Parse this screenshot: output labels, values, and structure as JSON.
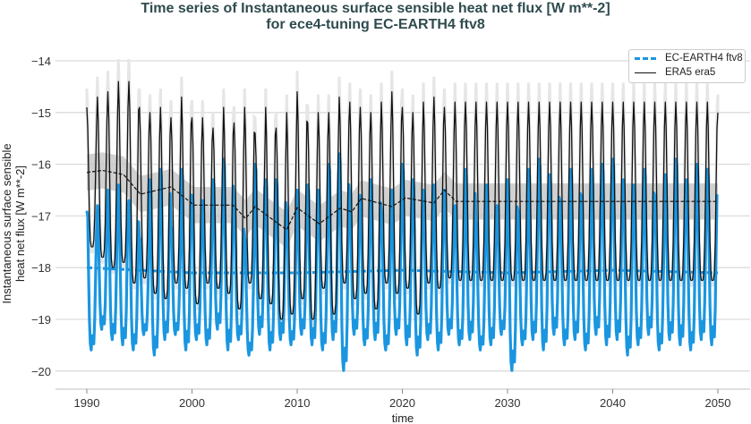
{
  "chart_data": {
    "type": "line",
    "title": "Time series of Instantaneous surface sensible heat net flux [W m**-2]",
    "subtitle": "for ece4-tuning EC-EARTH4 ftv8",
    "xlabel": "time",
    "ylabel": "Instantaneous surface sensible heat net flux [W m**-2]",
    "xlim": [
      1988,
      2053
    ],
    "ylim": [
      -20.35,
      -13.8
    ],
    "xticks": [
      "1990",
      "2000",
      "2010",
      "2020",
      "2030",
      "2040",
      "2050"
    ],
    "yticks": [
      "−14",
      "−15",
      "−16",
      "−17",
      "−18",
      "−19",
      "−20"
    ],
    "grid": "horizontal",
    "legend_position": "top-right",
    "series": [
      {
        "name": "EC-EARTH4 ftv8",
        "color": "#1a96e0",
        "style": "dashed",
        "frequency": "monthly",
        "years": [
          1990,
          2049
        ],
        "annual_peak": [
          -16.9,
          -16.8,
          -16.5,
          -16.4,
          -16.7,
          -17.4,
          -16.3,
          -16.1,
          -17.2,
          -16.1,
          -16.6,
          -16.7,
          -16.3,
          -15.9,
          -16.9,
          -17.4,
          -16.0,
          -16.3,
          -16.3,
          -17.0,
          -16.5,
          -16.4,
          -16.5,
          -16.0,
          -15.8,
          -16.6,
          -16.6,
          -16.3,
          -16.9,
          -16.5,
          -16.0,
          -16.3,
          -16.5,
          -16.4,
          -16.5,
          -16.8,
          -16.1,
          -17.1,
          -16.4,
          -16.8,
          -16.3,
          -16.9,
          -16.1,
          -15.9,
          -16.2,
          -16.7,
          -16.1,
          -16.6,
          -16.1,
          -16.0,
          -15.9,
          -16.3,
          -16.4,
          -16.1,
          -16.6,
          -16.2,
          -15.9,
          -16.3,
          -16.0,
          -16.1
        ],
        "annual_trough": [
          -19.6,
          -19.2,
          -19.4,
          -19.5,
          -19.6,
          -19.3,
          -19.7,
          -19.4,
          -19.3,
          -19.6,
          -19.4,
          -19.5,
          -19.2,
          -19.6,
          -19.4,
          -19.7,
          -19.3,
          -19.6,
          -19.4,
          -19.5,
          -19.3,
          -19.5,
          -19.6,
          -19.4,
          -20.0,
          -19.3,
          -19.5,
          -19.4,
          -19.6,
          -19.3,
          -19.5,
          -19.7,
          -19.4,
          -19.6,
          -19.3,
          -19.5,
          -19.4,
          -19.6,
          -19.5,
          -19.3,
          -20.0,
          -19.5,
          -19.4,
          -19.6,
          -19.3,
          -19.5,
          -19.4,
          -19.6,
          -19.3,
          -19.5,
          -19.4,
          -19.7,
          -19.5,
          -19.3,
          -19.6,
          -19.4,
          -19.5,
          -19.6,
          -19.4,
          -19.5
        ],
        "running_mean": {
          "x": [
            1990,
            1995,
            2000,
            2010,
            2020,
            2030,
            2040,
            2050
          ],
          "y": [
            -18.0,
            -18.05,
            -18.1,
            -18.1,
            -18.05,
            -18.1,
            -18.05,
            -18.1
          ]
        }
      },
      {
        "name": "ERA5 era5",
        "color": "#111111",
        "style": "solid",
        "frequency": "monthly",
        "years": [
          1990,
          2049
        ],
        "annual_peak": [
          -14.9,
          -14.7,
          -14.6,
          -14.4,
          -14.4,
          -14.9,
          -15.0,
          -14.9,
          -15.1,
          -14.7,
          -15.1,
          -15.1,
          -15.3,
          -14.9,
          -15.2,
          -14.9,
          -15.4,
          -14.9,
          -15.3,
          -15.0,
          -14.6,
          -15.2,
          -15.0,
          -15.0,
          -14.7,
          -14.8,
          -14.9,
          -15.0,
          -14.8,
          -14.6,
          -14.9,
          -15.0,
          -14.8,
          -14.7,
          -14.9,
          -14.8,
          -14.8,
          -14.8,
          -14.8,
          -14.8,
          -14.8,
          -14.8,
          -14.8,
          -14.8,
          -14.8,
          -14.8,
          -14.8,
          -14.8,
          -14.8,
          -14.8,
          -14.8,
          -14.8,
          -14.8,
          -14.8,
          -14.8,
          -14.8,
          -14.8,
          -14.8,
          -14.8,
          -14.8
        ],
        "annual_trough": [
          -17.6,
          -17.8,
          -18.0,
          -17.9,
          -18.3,
          -18.2,
          -18.5,
          -18.6,
          -18.3,
          -18.4,
          -18.7,
          -18.3,
          -18.4,
          -18.5,
          -18.8,
          -18.3,
          -18.6,
          -18.7,
          -19.0,
          -18.9,
          -18.6,
          -19.0,
          -18.4,
          -18.9,
          -18.3,
          -18.6,
          -18.5,
          -18.8,
          -18.3,
          -18.5,
          -18.4,
          -18.9,
          -18.3,
          -18.4,
          -18.2,
          -18.25,
          -18.25,
          -18.25,
          -18.25,
          -18.25,
          -18.25,
          -18.25,
          -18.25,
          -18.25,
          -18.25,
          -18.25,
          -18.25,
          -18.25,
          -18.25,
          -18.25,
          -18.25,
          -18.25,
          -18.25,
          -18.25,
          -18.25,
          -18.25,
          -18.25,
          -18.25,
          -18.25,
          -18.25
        ],
        "end_value": -15.0,
        "running_mean": {
          "x": [
            1990,
            1991.5,
            1993.5,
            1995.1,
            1998,
            2000.2,
            2003.9,
            2005.1,
            2006,
            2009,
            2010,
            2012.1,
            2014.1,
            2015.2,
            2016.1,
            2019,
            2020.3,
            2023,
            2024,
            2025.1,
            2050
          ],
          "y": [
            -16.16,
            -16.12,
            -16.2,
            -16.58,
            -16.44,
            -16.79,
            -16.79,
            -17.05,
            -16.82,
            -17.27,
            -16.84,
            -17.15,
            -16.85,
            -16.92,
            -16.66,
            -16.82,
            -16.65,
            -16.75,
            -16.5,
            -16.72,
            -16.72
          ]
        },
        "running_std_band": 0.35
      }
    ]
  }
}
